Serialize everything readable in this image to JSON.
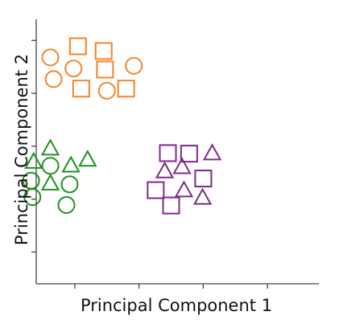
{
  "chart_data": {
    "type": "scatter",
    "title": "",
    "xlabel": "Principal Component 1",
    "ylabel": "Principal Component 2",
    "xlim": [
      -1.6,
      2.8
    ],
    "ylim": [
      -2.6,
      2.4
    ],
    "xticks": [
      -1,
      0,
      1,
      2
    ],
    "yticks": [
      -2,
      -1,
      0,
      1,
      2
    ],
    "show_tick_labels": false,
    "grid": false,
    "legend": "none",
    "series": [
      {
        "cluster": "orange",
        "color": "#f5832a",
        "points": [
          {
            "x": -1.38,
            "y": 1.68,
            "shape": "circle"
          },
          {
            "x": -1.33,
            "y": 1.27,
            "shape": "circle"
          },
          {
            "x": -1.02,
            "y": 1.47,
            "shape": "circle"
          },
          {
            "x": -0.95,
            "y": 1.89,
            "shape": "square"
          },
          {
            "x": -0.9,
            "y": 1.09,
            "shape": "square"
          },
          {
            "x": -0.55,
            "y": 1.8,
            "shape": "square"
          },
          {
            "x": -0.53,
            "y": 1.45,
            "shape": "square"
          },
          {
            "x": -0.5,
            "y": 1.05,
            "shape": "circle"
          },
          {
            "x": -0.2,
            "y": 1.09,
            "shape": "square"
          },
          {
            "x": -0.08,
            "y": 1.52,
            "shape": "circle"
          }
        ]
      },
      {
        "cluster": "green",
        "color": "#21911f",
        "points": [
          {
            "x": -1.64,
            "y": -0.3,
            "shape": "triangle"
          },
          {
            "x": -1.38,
            "y": -0.05,
            "shape": "triangle"
          },
          {
            "x": -1.38,
            "y": -0.37,
            "shape": "circle"
          },
          {
            "x": -1.06,
            "y": -0.37,
            "shape": "triangle"
          },
          {
            "x": -0.8,
            "y": -0.26,
            "shape": "triangle"
          },
          {
            "x": -1.68,
            "y": -0.65,
            "shape": "circle"
          },
          {
            "x": -1.38,
            "y": -0.71,
            "shape": "triangle"
          },
          {
            "x": -1.08,
            "y": -0.72,
            "shape": "circle"
          },
          {
            "x": -1.66,
            "y": -0.96,
            "shape": "circle"
          },
          {
            "x": -1.13,
            "y": -1.11,
            "shape": "circle"
          }
        ]
      },
      {
        "cluster": "purple",
        "color": "#7b2b8a",
        "points": [
          {
            "x": 0.45,
            "y": -0.13,
            "shape": "square"
          },
          {
            "x": 0.78,
            "y": -0.14,
            "shape": "square"
          },
          {
            "x": 1.14,
            "y": -0.14,
            "shape": "triangle"
          },
          {
            "x": 0.4,
            "y": -0.48,
            "shape": "triangle"
          },
          {
            "x": 0.67,
            "y": -0.4,
            "shape": "triangle"
          },
          {
            "x": 1.0,
            "y": -0.61,
            "shape": "square"
          },
          {
            "x": 0.26,
            "y": -0.83,
            "shape": "square"
          },
          {
            "x": 0.7,
            "y": -0.84,
            "shape": "triangle"
          },
          {
            "x": 0.99,
            "y": -0.98,
            "shape": "triangle"
          },
          {
            "x": 0.5,
            "y": -1.12,
            "shape": "square"
          }
        ]
      }
    ]
  }
}
